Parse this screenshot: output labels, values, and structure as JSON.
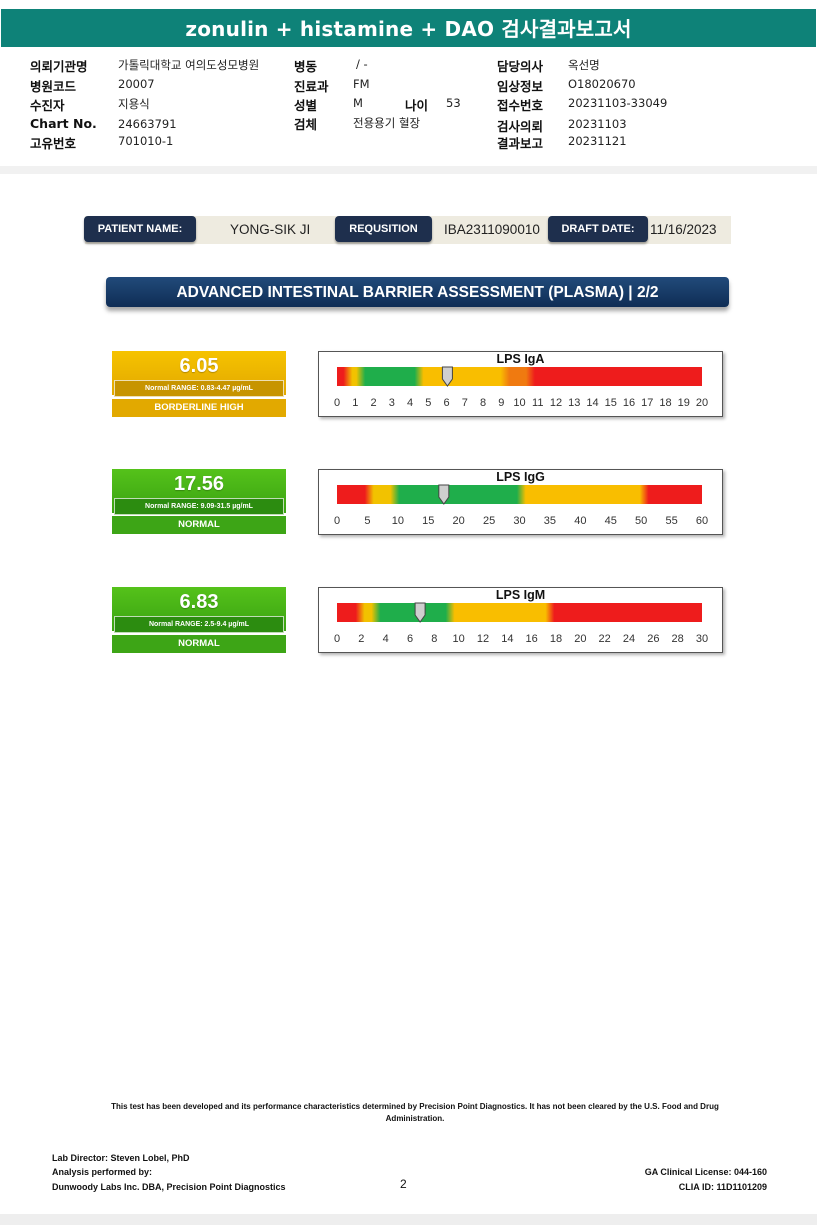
{
  "header": {
    "title": "zonulin + histamine + DAO 검사결과보고서",
    "fields": [
      {
        "label": "의뢰기관명",
        "value": "가톨릭대학교 여의도성모병원"
      },
      {
        "label": "병원코드",
        "value": "20007"
      },
      {
        "label": "수진자",
        "value": "지용식"
      },
      {
        "label": "Chart No.",
        "value": "24663791"
      },
      {
        "label": "고유번호",
        "value": "701010-1"
      },
      {
        "label": "병동",
        "value": "/ -"
      },
      {
        "label": "진료과",
        "value": "FM"
      },
      {
        "label": "성별",
        "value": "M"
      },
      {
        "label": "나이",
        "value": "53"
      },
      {
        "label": "검체",
        "value": "전용용기 혈장"
      },
      {
        "label": "담당의사",
        "value": "옥선명"
      },
      {
        "label": "임상정보",
        "value": "O18020670"
      },
      {
        "label": "접수번호",
        "value": "20231103-33049"
      },
      {
        "label": "검사의뢰",
        "value": "20231103"
      },
      {
        "label": "결과보고",
        "value": "20231121"
      }
    ]
  },
  "patient_row": {
    "patient_name_label": "PATIENT NAME:",
    "patient_name": "YONG-SIK JI",
    "requisition_label": "REQUSITION",
    "requisition": "IBA2311090010",
    "draft_date_label": "DRAFT DATE:",
    "draft_date": "11/16/2023"
  },
  "section_title": "ADVANCED INTESTINAL BARRIER ASSESSMENT (PLASMA) | 2/2",
  "results": [
    {
      "value": "6.05",
      "range": "Normal RANGE: 0.83-4.47 µg/mL",
      "status": "BORDERLINE HIGH",
      "color": "#e9b000"
    },
    {
      "value": "17.56",
      "range": "Normal RANGE: 9.09-31.5 µg/mL",
      "status": "NORMAL",
      "color": "#46ad16"
    },
    {
      "value": "6.83",
      "range": "Normal RANGE: 2.5-9.4 µg/mL",
      "status": "NORMAL",
      "color": "#46ad16"
    }
  ],
  "chart_data": [
    {
      "type": "gauge",
      "title": "LPS IgA",
      "xlim": [
        0,
        20
      ],
      "ticks": [
        0,
        1,
        2,
        3,
        4,
        5,
        6,
        7,
        8,
        9,
        10,
        11,
        12,
        13,
        14,
        15,
        16,
        17,
        18,
        19,
        20
      ],
      "marker_value": 6.05,
      "zones": [
        {
          "from": 0,
          "to": 0.6,
          "color": "#ee1c1c"
        },
        {
          "from": 0.6,
          "to": 1.3,
          "color": "#f2c200"
        },
        {
          "from": 1.3,
          "to": 4.5,
          "color": "#1fae4b"
        },
        {
          "from": 4.5,
          "to": 9.2,
          "color": "#f9be00"
        },
        {
          "from": 9.2,
          "to": 10.6,
          "color": "#f07a10"
        },
        {
          "from": 10.6,
          "to": 20,
          "color": "#ee1c1c"
        }
      ]
    },
    {
      "type": "gauge",
      "title": "LPS IgG",
      "xlim": [
        0,
        60
      ],
      "ticks": [
        0,
        5,
        10,
        15,
        20,
        25,
        30,
        35,
        40,
        45,
        50,
        55,
        60
      ],
      "marker_value": 17.56,
      "zones": [
        {
          "from": 0,
          "to": 5.3,
          "color": "#ee1c1c"
        },
        {
          "from": 5.3,
          "to": 9.5,
          "color": "#f2c200"
        },
        {
          "from": 9.5,
          "to": 30.3,
          "color": "#1fae4b"
        },
        {
          "from": 30.3,
          "to": 50.5,
          "color": "#f9be00"
        },
        {
          "from": 50.5,
          "to": 60,
          "color": "#ee1c1c"
        }
      ]
    },
    {
      "type": "gauge",
      "title": "LPS IgM",
      "xlim": [
        0,
        30
      ],
      "ticks": [
        0,
        2,
        4,
        6,
        8,
        10,
        12,
        14,
        16,
        18,
        20,
        22,
        24,
        26,
        28,
        30
      ],
      "marker_value": 6.83,
      "zones": [
        {
          "from": 0,
          "to": 1.9,
          "color": "#ee1c1c"
        },
        {
          "from": 1.9,
          "to": 3.2,
          "color": "#f2c200"
        },
        {
          "from": 3.2,
          "to": 9.3,
          "color": "#1fae4b"
        },
        {
          "from": 9.3,
          "to": 17.5,
          "color": "#f9be00"
        },
        {
          "from": 17.5,
          "to": 30,
          "color": "#ee1c1c"
        }
      ]
    }
  ],
  "footer": {
    "disclaimer": "This test has been developed and its performance characteristics determined by Precision Point Diagnostics. It has not been cleared by the U.S. Food and Drug Administration.",
    "lab_director": "Lab Director: Steven Lobel, PhD",
    "analysis_by": "Analysis performed by:",
    "lab_name": "Dunwoody Labs Inc. DBA, Precision Point Diagnostics",
    "page_number": "2",
    "ga_license": "GA Clinical License: 044-160",
    "clia_id": "CLIA ID: 11D1101209"
  }
}
